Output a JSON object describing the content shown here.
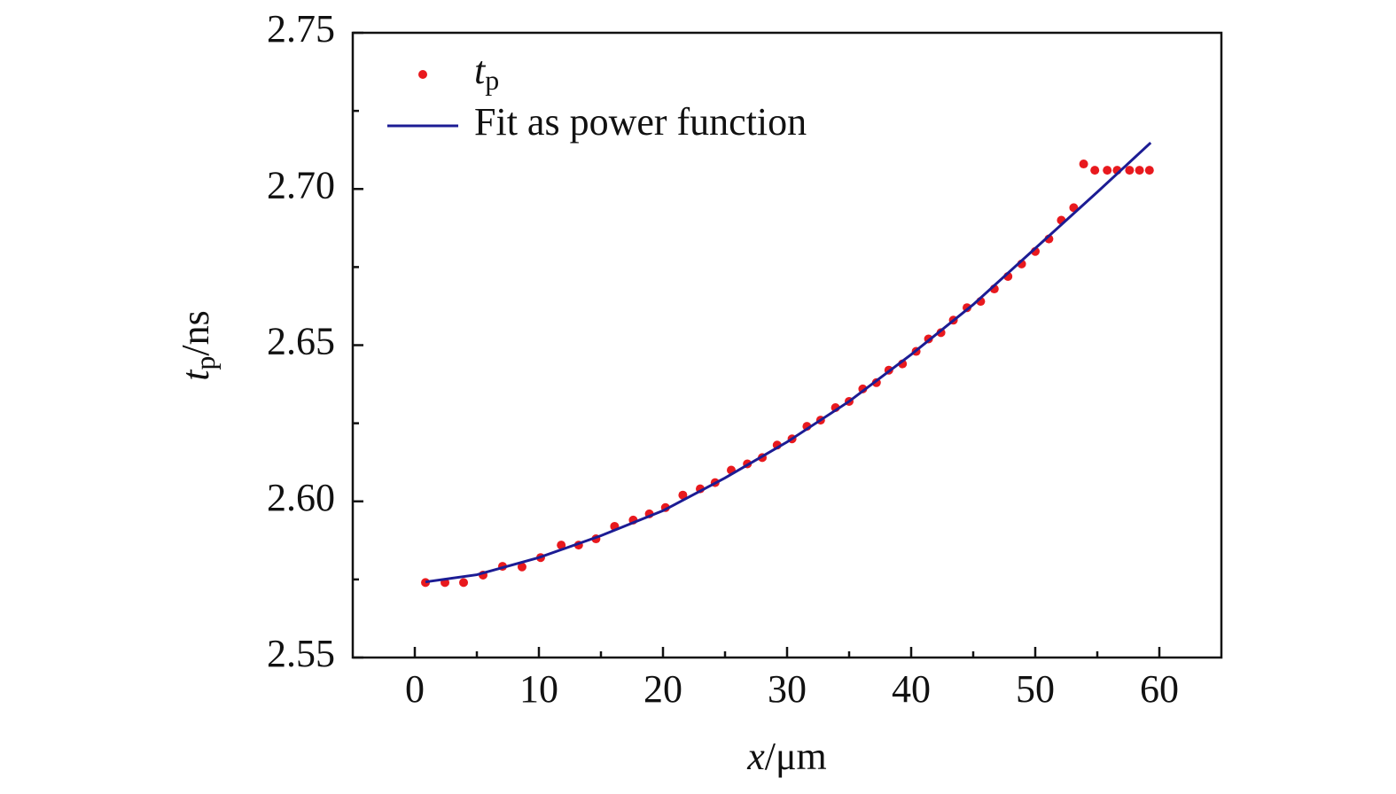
{
  "chart_data": {
    "type": "scatter",
    "xlabel": {
      "symbol": "x",
      "unit": "/μm"
    },
    "ylabel": {
      "symbol": "t",
      "subscript": "p",
      "unit": "/ns"
    },
    "xlim": [
      -5,
      65
    ],
    "ylim": [
      2.55,
      2.75
    ],
    "xticks": [
      0,
      10,
      20,
      30,
      40,
      50,
      60
    ],
    "xminorticks": [
      5,
      15,
      25,
      35,
      45,
      55
    ],
    "yticks": [
      {
        "value": 2.55,
        "label": "2.55"
      },
      {
        "value": 2.6,
        "label": "2.60"
      },
      {
        "value": 2.65,
        "label": "2.65"
      },
      {
        "value": 2.7,
        "label": "2.70"
      },
      {
        "value": 2.75,
        "label": "2.75"
      }
    ],
    "yminorticks": [
      2.575,
      2.625,
      2.675,
      2.725
    ],
    "legend": "upper left",
    "series": [
      {
        "name": {
          "symbol": "t",
          "subscript": "p"
        },
        "type": "scatter",
        "color": "#e8191e",
        "x": [
          0.86,
          2.43,
          3.93,
          5.5,
          7.07,
          8.64,
          10.14,
          11.8,
          13.2,
          14.6,
          16.1,
          17.6,
          18.9,
          20.2,
          21.6,
          23.0,
          24.2,
          25.5,
          26.8,
          28.0,
          29.2,
          30.4,
          31.6,
          32.7,
          33.9,
          35.0,
          36.1,
          37.2,
          38.2,
          39.3,
          40.4,
          41.4,
          42.4,
          43.4,
          44.5,
          45.6,
          46.7,
          47.8,
          48.9,
          50.0,
          51.1,
          52.1,
          53.1,
          53.9,
          54.8,
          55.8,
          56.6,
          57.6,
          58.4,
          59.2
        ],
        "values": [
          2.574,
          2.574,
          2.574,
          2.5764,
          2.5792,
          2.579,
          2.582,
          2.586,
          2.586,
          2.588,
          2.592,
          2.594,
          2.596,
          2.598,
          2.602,
          2.604,
          2.606,
          2.61,
          2.612,
          2.614,
          2.618,
          2.62,
          2.624,
          2.626,
          2.63,
          2.632,
          2.636,
          2.638,
          2.642,
          2.644,
          2.648,
          2.652,
          2.654,
          2.658,
          2.662,
          2.664,
          2.668,
          2.672,
          2.676,
          2.68,
          2.684,
          2.69,
          2.694,
          2.708,
          2.706,
          2.706,
          2.706,
          2.706,
          2.706,
          2.706
        ]
      },
      {
        "name": "Fit as power function",
        "type": "line",
        "color": "#1c1c94",
        "x": [
          0.86,
          5,
          10,
          15,
          20,
          25,
          30,
          35,
          40,
          45,
          50,
          55,
          59.3
        ],
        "values": [
          2.5742,
          2.5765,
          2.582,
          2.589,
          2.597,
          2.6075,
          2.619,
          2.632,
          2.647,
          2.663,
          2.681,
          2.699,
          2.7148
        ]
      }
    ]
  }
}
